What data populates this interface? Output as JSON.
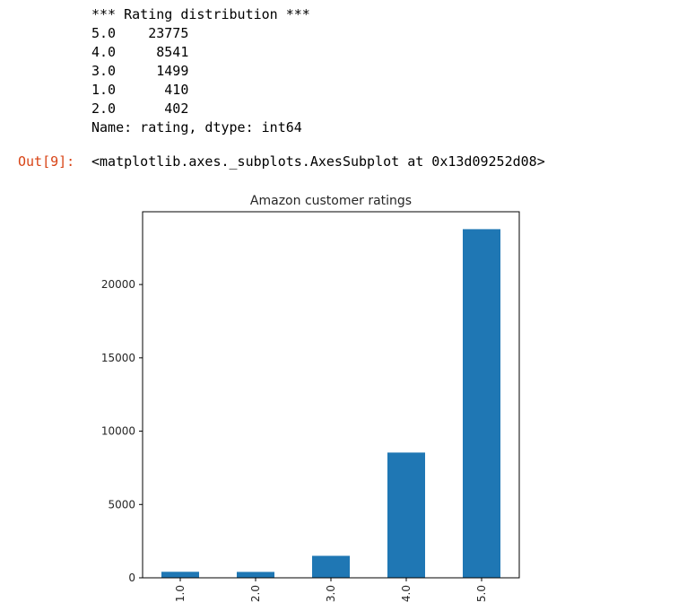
{
  "stdout": {
    "lines": [
      "*** Rating distribution ***",
      "5.0    23775",
      "4.0     8541",
      "3.0     1499",
      "1.0      410",
      "2.0      402",
      "Name: rating, dtype: int64"
    ]
  },
  "output": {
    "prompt": "Out[9]:",
    "text": "<matplotlib.axes._subplots.AxesSubplot at 0x13d09252d08>"
  },
  "chart_data": {
    "type": "bar",
    "title": "Amazon customer ratings",
    "categories": [
      "1.0",
      "2.0",
      "3.0",
      "4.0",
      "5.0"
    ],
    "values": [
      410,
      402,
      1499,
      8541,
      23775
    ],
    "ylim": [
      0,
      24963
    ],
    "yticks": [
      0,
      5000,
      10000,
      15000,
      20000
    ],
    "ytick_labels": [
      "0",
      "5000",
      "10000",
      "15000",
      "20000"
    ],
    "xtick_rotation": "vertical",
    "grid": false,
    "legend": "none",
    "bar_color": "#1f77b4"
  }
}
